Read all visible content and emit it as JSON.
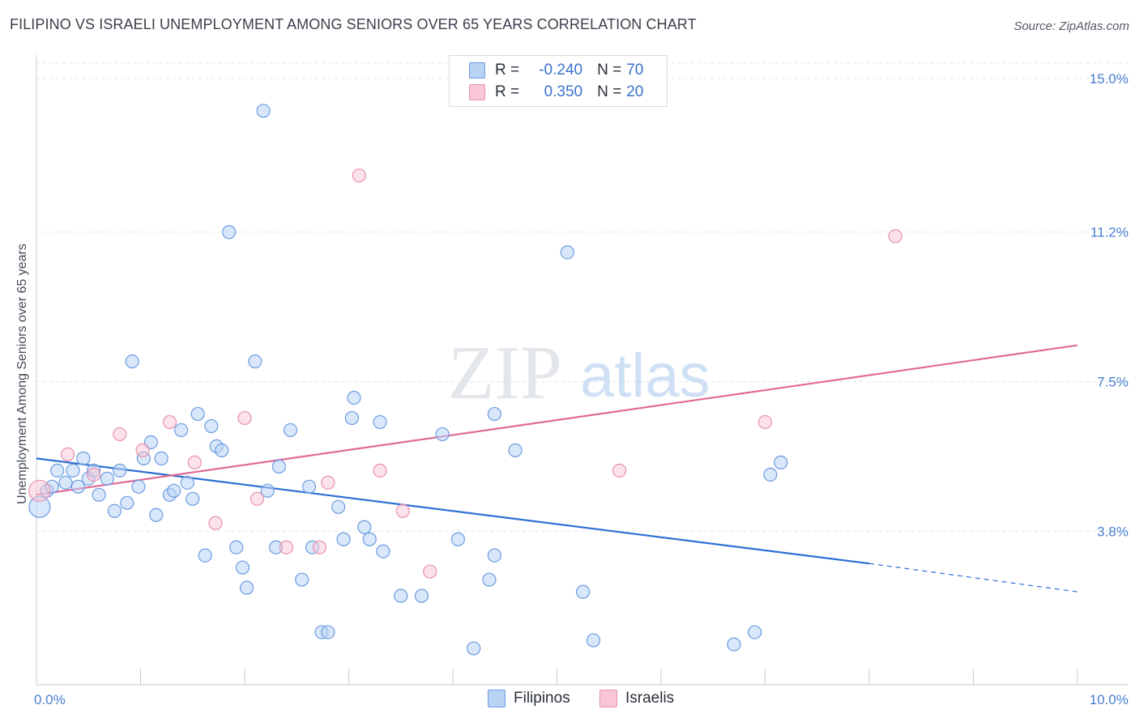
{
  "title": "FILIPINO VS ISRAELI UNEMPLOYMENT AMONG SENIORS OVER 65 YEARS CORRELATION CHART",
  "source": "Source: ZipAtlas.com",
  "watermark": {
    "zip": "ZIP",
    "atlas": "atlas"
  },
  "colors": {
    "blue_fill": "#b9d3f5",
    "blue_stroke": "#6b9be0",
    "blue_line": "#2e6fd3",
    "pink_fill": "#f9c6d6",
    "pink_stroke": "#e890ad",
    "pink_line": "#e06b96",
    "grid": "#dfe3e8",
    "tick_text": "#4a7fd0"
  },
  "legend": {
    "rows": [
      {
        "r_label": "R =",
        "r_value": "-0.240",
        "n_label": "N =",
        "n_value": "70"
      },
      {
        "r_label": "R =",
        "r_value": "0.350",
        "n_label": "N =",
        "n_value": "20"
      }
    ]
  },
  "bottom_legend": [
    {
      "label": "Filipinos"
    },
    {
      "label": "Israelis"
    }
  ],
  "chart_data": {
    "type": "scatter",
    "title": "FILIPINO VS ISRAELI UNEMPLOYMENT AMONG SENIORS OVER 65 YEARS CORRELATION CHART",
    "xlabel": "",
    "ylabel": "Unemployment Among Seniors over 65 years",
    "xlim": [
      0,
      10
    ],
    "ylim": [
      0,
      15
    ],
    "y_ticks": [
      3.8,
      7.5,
      11.2,
      15.0
    ],
    "y_tick_labels": [
      "3.8%",
      "7.5%",
      "11.2%",
      "15.0%"
    ],
    "x_tick_labels": [
      "0.0%",
      "10.0%"
    ],
    "grid": true,
    "series": [
      {
        "name": "Filipinos",
        "r": -0.24,
        "n": 70,
        "trend": {
          "x": [
            0,
            8
          ],
          "y": [
            5.6,
            3.0
          ],
          "dashed_to": [
            10,
            2.3
          ]
        },
        "points": [
          [
            0.03,
            4.4
          ],
          [
            0.1,
            4.8
          ],
          [
            0.15,
            4.9
          ],
          [
            0.2,
            5.3
          ],
          [
            0.28,
            5.0
          ],
          [
            0.35,
            5.3
          ],
          [
            0.4,
            4.9
          ],
          [
            0.45,
            5.6
          ],
          [
            0.5,
            5.1
          ],
          [
            0.55,
            5.3
          ],
          [
            0.6,
            4.7
          ],
          [
            0.68,
            5.1
          ],
          [
            0.75,
            4.3
          ],
          [
            0.8,
            5.3
          ],
          [
            0.87,
            4.5
          ],
          [
            0.92,
            8.0
          ],
          [
            0.98,
            4.9
          ],
          [
            1.03,
            5.6
          ],
          [
            1.1,
            6.0
          ],
          [
            1.15,
            4.2
          ],
          [
            1.2,
            5.6
          ],
          [
            1.28,
            4.7
          ],
          [
            1.32,
            4.8
          ],
          [
            1.39,
            6.3
          ],
          [
            1.45,
            5.0
          ],
          [
            1.5,
            4.6
          ],
          [
            1.55,
            6.7
          ],
          [
            1.62,
            3.2
          ],
          [
            1.68,
            6.4
          ],
          [
            1.73,
            5.9
          ],
          [
            1.78,
            5.8
          ],
          [
            1.85,
            11.2
          ],
          [
            1.92,
            3.4
          ],
          [
            1.98,
            2.9
          ],
          [
            2.02,
            2.4
          ],
          [
            2.1,
            8.0
          ],
          [
            2.18,
            14.2
          ],
          [
            2.22,
            4.8
          ],
          [
            2.3,
            3.4
          ],
          [
            2.33,
            5.4
          ],
          [
            2.44,
            6.3
          ],
          [
            2.55,
            2.6
          ],
          [
            2.62,
            4.9
          ],
          [
            2.65,
            3.4
          ],
          [
            2.74,
            1.3
          ],
          [
            2.8,
            1.3
          ],
          [
            2.9,
            4.4
          ],
          [
            2.95,
            3.6
          ],
          [
            3.03,
            6.6
          ],
          [
            3.05,
            7.1
          ],
          [
            3.15,
            3.9
          ],
          [
            3.2,
            3.6
          ],
          [
            3.3,
            6.5
          ],
          [
            3.33,
            3.3
          ],
          [
            3.5,
            2.2
          ],
          [
            3.7,
            2.2
          ],
          [
            3.9,
            6.2
          ],
          [
            4.05,
            3.6
          ],
          [
            4.2,
            0.9
          ],
          [
            4.35,
            2.6
          ],
          [
            4.4,
            6.7
          ],
          [
            4.4,
            3.2
          ],
          [
            4.6,
            5.8
          ],
          [
            5.1,
            10.7
          ],
          [
            5.25,
            2.3
          ],
          [
            5.35,
            1.1
          ],
          [
            6.7,
            1.0
          ],
          [
            6.9,
            1.3
          ],
          [
            7.05,
            5.2
          ],
          [
            7.15,
            5.5
          ]
        ]
      },
      {
        "name": "Israelis",
        "r": 0.35,
        "n": 20,
        "trend": {
          "x": [
            0,
            10
          ],
          "y": [
            4.7,
            8.4
          ]
        },
        "points": [
          [
            0.03,
            4.8
          ],
          [
            0.3,
            5.7
          ],
          [
            0.55,
            5.2
          ],
          [
            0.8,
            6.2
          ],
          [
            1.02,
            5.8
          ],
          [
            1.28,
            6.5
          ],
          [
            1.52,
            5.5
          ],
          [
            1.72,
            4.0
          ],
          [
            2.0,
            6.6
          ],
          [
            2.12,
            4.6
          ],
          [
            2.4,
            3.4
          ],
          [
            2.72,
            3.4
          ],
          [
            2.8,
            5.0
          ],
          [
            3.1,
            12.6
          ],
          [
            3.3,
            5.3
          ],
          [
            3.52,
            4.3
          ],
          [
            3.78,
            2.8
          ],
          [
            5.6,
            5.3
          ],
          [
            7.0,
            6.5
          ],
          [
            8.25,
            11.1
          ]
        ]
      }
    ]
  }
}
